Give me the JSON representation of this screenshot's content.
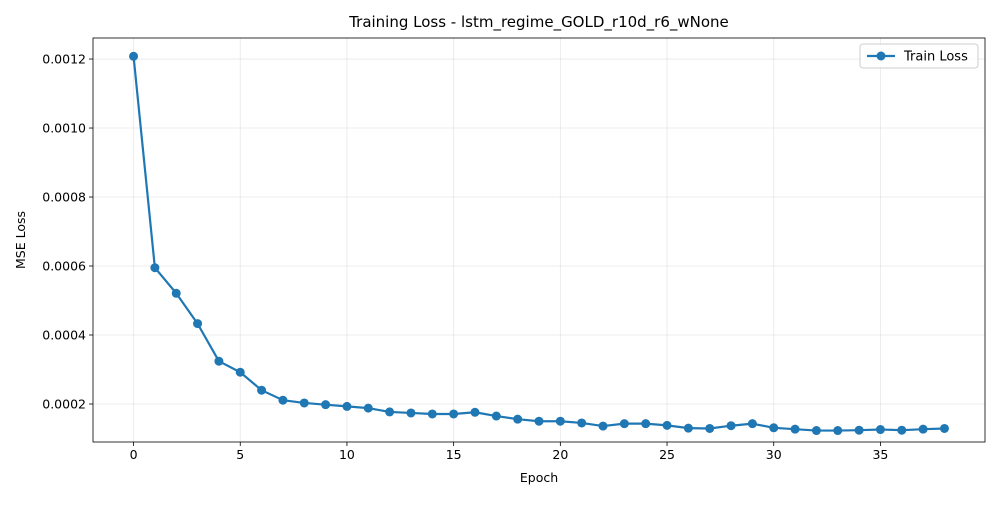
{
  "chart_data": {
    "type": "line",
    "title": "Training Loss - lstm_regime_GOLD_r10d_r6_wNone",
    "xlabel": "Epoch",
    "ylabel": "MSE Loss",
    "xlim": [
      -1.9,
      39.9
    ],
    "ylim": [
      8.98e-05,
      0.001261
    ],
    "x_ticks": [
      0,
      5,
      10,
      15,
      20,
      25,
      30,
      35
    ],
    "y_ticks": [
      0.0002,
      0.0004,
      0.0006,
      0.0008,
      0.001,
      0.0012
    ],
    "x_tick_labels": [
      "0",
      "5",
      "10",
      "15",
      "20",
      "25",
      "30",
      "35"
    ],
    "y_tick_labels": [
      "0.0002",
      "0.0004",
      "0.0006",
      "0.0008",
      "0.0010",
      "0.0012"
    ],
    "grid": true,
    "legend_position": "top-right",
    "series": [
      {
        "name": "Train Loss",
        "color": "#1f77b4",
        "x": [
          0,
          1,
          2,
          3,
          4,
          5,
          6,
          7,
          8,
          9,
          10,
          11,
          12,
          13,
          14,
          15,
          16,
          17,
          18,
          19,
          20,
          21,
          22,
          23,
          24,
          25,
          26,
          27,
          28,
          29,
          30,
          31,
          32,
          33,
          34,
          35,
          36,
          37,
          38
        ],
        "values": [
          0.001208,
          0.000595,
          0.000521,
          0.000433,
          0.000324,
          0.000292,
          0.00024,
          0.000211,
          0.000203,
          0.000198,
          0.000193,
          0.000188,
          0.000177,
          0.000174,
          0.000171,
          0.000171,
          0.000176,
          0.000165,
          0.000156,
          0.00015,
          0.00015,
          0.000145,
          0.000136,
          0.000143,
          0.000143,
          0.000138,
          0.00013,
          0.000129,
          0.000137,
          0.000143,
          0.000131,
          0.000127,
          0.000123,
          0.000123,
          0.000124,
          0.000126,
          0.000124,
          0.000127,
          0.000129
        ]
      }
    ]
  }
}
